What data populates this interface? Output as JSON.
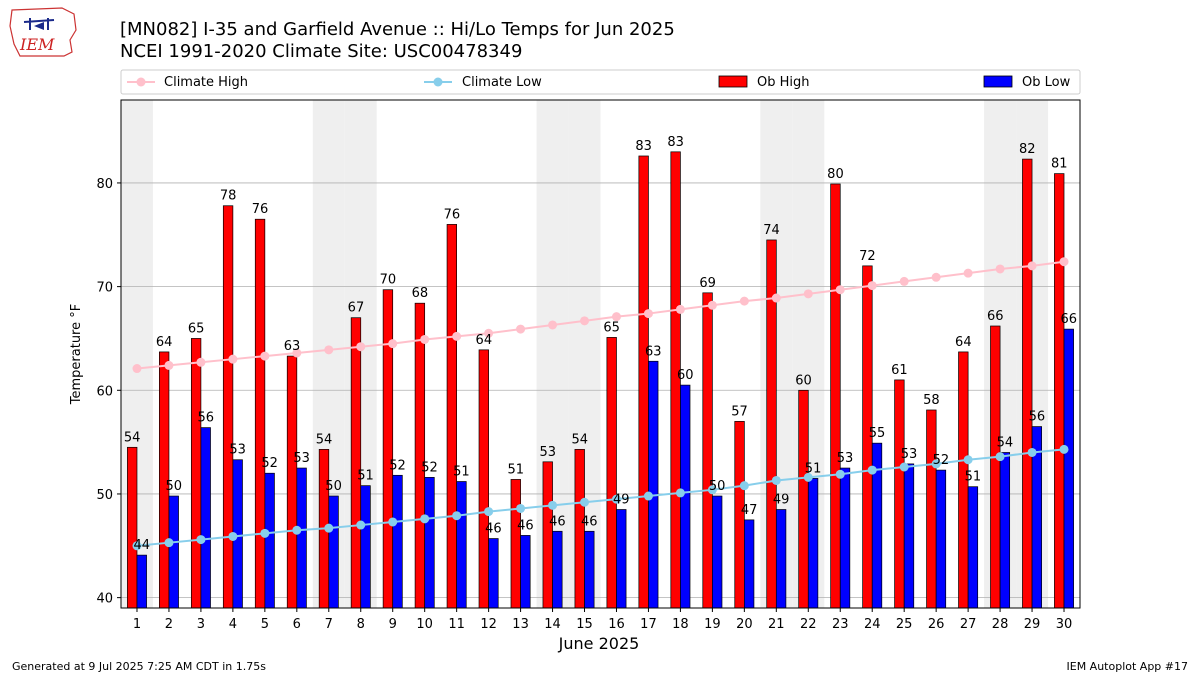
{
  "header": {
    "title": "[MN082] I-35 and Garfield Avenue :: Hi/Lo Temps for Jun 2025",
    "subtitle": "NCEI 1991-2020 Climate Site: USC00478349",
    "logo_text": "IEM"
  },
  "footer": {
    "left": "Generated at 9 Jul 2025 7:25 AM CDT in 1.75s",
    "right": "IEM Autoplot App #17"
  },
  "colors": {
    "ob_high": "#ff0000",
    "ob_low": "#0000ff",
    "climate_high": "#ffc0cb",
    "climate_low": "#87ceeb",
    "weekend_shade": "#efefef",
    "grid": "#b0b0b0"
  },
  "chart_data": {
    "type": "bar",
    "xlabel": "June 2025",
    "ylabel": "Temperature °F",
    "ylim": [
      39,
      88
    ],
    "yticks": [
      40,
      50,
      60,
      70,
      80
    ],
    "grid": "horizontal",
    "legend_position": "top",
    "categories": [
      "1",
      "2",
      "3",
      "4",
      "5",
      "6",
      "7",
      "8",
      "9",
      "10",
      "11",
      "12",
      "13",
      "14",
      "15",
      "16",
      "17",
      "18",
      "19",
      "20",
      "21",
      "22",
      "23",
      "24",
      "25",
      "26",
      "27",
      "28",
      "29",
      "30"
    ],
    "shaded_days": [
      "1",
      "7",
      "8",
      "14",
      "15",
      "21",
      "22",
      "28",
      "29"
    ],
    "series": [
      {
        "name": "Ob High",
        "kind": "bar",
        "values": [
          54.5,
          63.7,
          65.0,
          77.8,
          76.5,
          63.3,
          54.3,
          67.0,
          69.7,
          68.4,
          76.0,
          63.9,
          51.4,
          53.1,
          54.3,
          65.1,
          82.6,
          83.0,
          69.4,
          57.0,
          74.5,
          60.0,
          79.9,
          72.0,
          61.0,
          58.1,
          63.7,
          66.2,
          82.3,
          80.9
        ],
        "labels": [
          "54",
          "64",
          "65",
          "78",
          "76",
          "63",
          "54",
          "67",
          "70",
          "68",
          "76",
          "64",
          "51",
          "53",
          "54",
          "65",
          "83",
          "83",
          "69",
          "57",
          "74",
          "60",
          "80",
          "72",
          "61",
          "58",
          "64",
          "66",
          "82",
          "81"
        ]
      },
      {
        "name": "Ob Low",
        "kind": "bar",
        "values": [
          44.1,
          49.8,
          56.4,
          53.3,
          52.0,
          52.5,
          49.8,
          50.8,
          51.8,
          51.6,
          51.2,
          45.7,
          46.0,
          46.4,
          46.4,
          48.5,
          62.8,
          60.5,
          49.8,
          47.5,
          48.5,
          51.5,
          52.5,
          54.9,
          52.9,
          52.3,
          50.7,
          54.0,
          56.5,
          65.9
        ],
        "labels": [
          "44",
          "50",
          "56",
          "53",
          "52",
          "53",
          "50",
          "51",
          "52",
          "52",
          "51",
          "46",
          "46",
          "46",
          "46",
          "49",
          "63",
          "60",
          "50",
          "47",
          "49",
          "51",
          "53",
          "55",
          "53",
          "52",
          "51",
          "54",
          "56",
          "66"
        ]
      },
      {
        "name": "Climate High",
        "kind": "line",
        "values": [
          62.1,
          62.4,
          62.7,
          63.0,
          63.3,
          63.6,
          63.9,
          64.2,
          64.5,
          64.9,
          65.2,
          65.5,
          65.9,
          66.3,
          66.7,
          67.1,
          67.4,
          67.8,
          68.2,
          68.6,
          68.9,
          69.3,
          69.7,
          70.1,
          70.5,
          70.9,
          71.3,
          71.7,
          72.0,
          72.4
        ]
      },
      {
        "name": "Climate Low",
        "kind": "line",
        "values": [
          45.0,
          45.3,
          45.6,
          45.9,
          46.2,
          46.5,
          46.7,
          47.0,
          47.3,
          47.6,
          47.9,
          48.3,
          48.6,
          48.9,
          49.2,
          49.5,
          49.8,
          50.1,
          50.4,
          50.8,
          51.3,
          51.6,
          51.9,
          52.3,
          52.6,
          52.9,
          53.3,
          53.6,
          54.0,
          54.3
        ]
      }
    ]
  }
}
